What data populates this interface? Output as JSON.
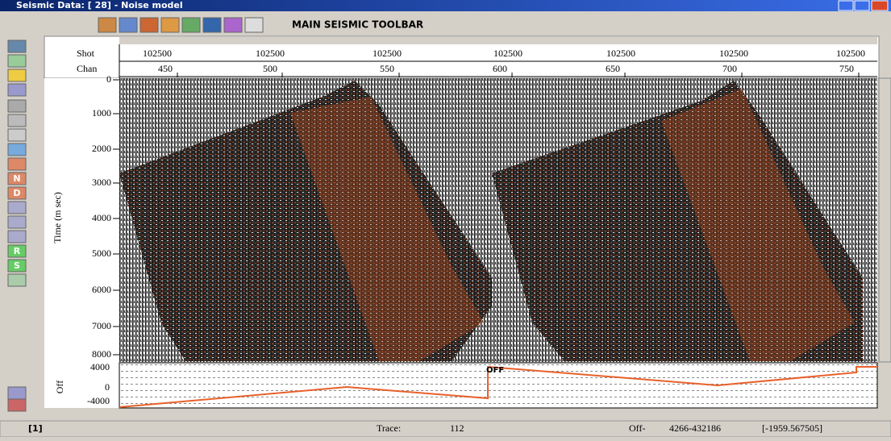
{
  "window": {
    "title": "Seismic Data: [ 28] - Noise model"
  },
  "toolbar": {
    "label": "MAIN SEISMIC TOOLBAR"
  },
  "left_toolbar": {
    "letters": [
      "N",
      "D",
      "R",
      "S"
    ]
  },
  "header": {
    "shot_label": "Shot",
    "chan_label": "Chan",
    "shots": [
      "102500",
      "102500",
      "102500",
      "102500",
      "102500",
      "102500",
      "102500"
    ],
    "chans": [
      "450",
      "500",
      "550",
      "600",
      "650",
      "700",
      "750"
    ]
  },
  "time_axis": {
    "label": "Time (m sec)",
    "ticks": [
      "0",
      "1000",
      "2000",
      "3000",
      "4000",
      "5000",
      "6000",
      "7000",
      "8000"
    ]
  },
  "offset_panel": {
    "label": "Off",
    "ticks": [
      "4000",
      "0",
      "-4000"
    ],
    "marker": "OFF"
  },
  "status_bar": {
    "page": "[1]",
    "trace_label": "Trace:",
    "trace_value": "112",
    "off_label": "Off-",
    "off_value": "4266-432186",
    "coord": "[-1959.567505]"
  }
}
